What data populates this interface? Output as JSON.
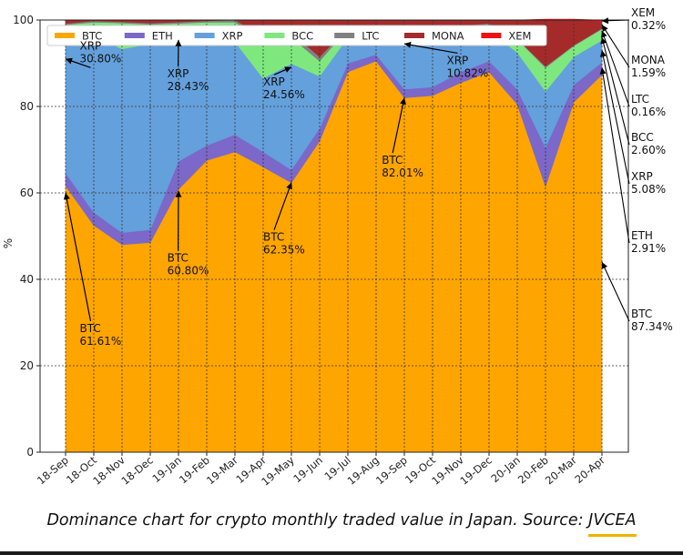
{
  "caption": {
    "text": "Dominance chart for crypto monthly traded value in Japan. Source: ",
    "link": "JVCEA"
  },
  "chart_data": {
    "type": "area",
    "stacked": true,
    "ylabel": "%",
    "xlabel": "",
    "ylim": [
      0,
      100
    ],
    "grid": true,
    "legend_position": "top",
    "categories": [
      "18-Sep",
      "18-Oct",
      "18-Nov",
      "18-Dec",
      "19-Jan",
      "19-Feb",
      "19-Mar",
      "19-Apr",
      "19-May",
      "19-Jun",
      "19-Jul",
      "19-Aug",
      "19-Sep",
      "19-Oct",
      "19-Nov",
      "19-Dec",
      "20-Jan",
      "20-Feb",
      "20-Mar",
      "20-Apr"
    ],
    "y_ticks": [
      0,
      20,
      40,
      60,
      80,
      100
    ],
    "series": [
      {
        "name": "BTC",
        "color": "#ffa500",
        "values": [
          61.61,
          52.5,
          48.0,
          48.5,
          60.8,
          67.5,
          69.5,
          66.0,
          62.35,
          72.0,
          88.0,
          90.5,
          82.01,
          82.5,
          85.5,
          88.0,
          80.5,
          61.5,
          81.0,
          87.34
        ]
      },
      {
        "name": "ETH",
        "color": "#7b68c8",
        "values": [
          3.0,
          3.0,
          2.8,
          3.0,
          6.5,
          3.5,
          4.0,
          3.5,
          3.0,
          3.0,
          2.0,
          1.5,
          2.0,
          2.0,
          2.5,
          2.5,
          3.5,
          9.0,
          4.0,
          2.91
        ]
      },
      {
        "name": "XRP",
        "color": "#64a0dc",
        "values": [
          30.8,
          41.0,
          42.5,
          43.0,
          28.43,
          25.5,
          21.5,
          17.0,
          24.56,
          12.0,
          6.0,
          4.5,
          10.82,
          12.5,
          9.0,
          7.0,
          8.5,
          13.0,
          6.5,
          5.08
        ]
      },
      {
        "name": "BCC",
        "color": "#7ee87e",
        "values": [
          3.5,
          3.0,
          6.0,
          4.5,
          3.5,
          3.0,
          4.5,
          9.0,
          6.0,
          3.5,
          2.0,
          1.5,
          1.5,
          1.5,
          1.5,
          1.5,
          3.0,
          5.5,
          2.5,
          2.6
        ]
      },
      {
        "name": "LTC",
        "color": "#808080",
        "values": [
          0.3,
          0.3,
          0.3,
          0.3,
          0.3,
          0.3,
          0.5,
          0.8,
          1.2,
          1.0,
          0.3,
          0.3,
          0.3,
          0.2,
          0.2,
          0.2,
          0.2,
          0.3,
          0.2,
          0.16
        ]
      },
      {
        "name": "MONA",
        "color": "#a52a2a",
        "values": [
          0.7,
          0.2,
          0.3,
          0.6,
          0.37,
          0.2,
          0.0,
          3.7,
          2.89,
          8.5,
          1.7,
          1.7,
          3.37,
          1.3,
          1.3,
          0.8,
          4.3,
          10.7,
          5.8,
          1.59
        ]
      },
      {
        "name": "XEM",
        "color": "#ee1111",
        "values": [
          0.09,
          0,
          0.1,
          0.1,
          0.1,
          0,
          0,
          0,
          0,
          0,
          0,
          0,
          0,
          0,
          0,
          0,
          0,
          0.2,
          0.2,
          0.32
        ]
      }
    ],
    "annotations": [
      {
        "name": "xrp-30-80",
        "text": [
          "XRP",
          "30.80%"
        ],
        "x": 0.5,
        "y": 93.2,
        "point": "18-Sep",
        "pointY": 91.0
      },
      {
        "name": "xrp-28-43",
        "text": [
          "XRP",
          "28.43%"
        ],
        "x": 3.6,
        "y": 86.7,
        "point": "19-Jan",
        "pointY": 95.4
      },
      {
        "name": "xrp-24-56",
        "text": [
          "XRP",
          "24.56%"
        ],
        "x": 7.0,
        "y": 84.8,
        "point": "19-May",
        "pointY": 89.1
      },
      {
        "name": "xrp-10-82",
        "text": [
          "XRP",
          "10.82%"
        ],
        "x": 13.5,
        "y": 89.8,
        "point": "19-Sep",
        "pointY": 94.5
      },
      {
        "name": "btc-82-01",
        "text": [
          "BTC",
          "82.01%"
        ],
        "x": 11.2,
        "y": 66.7,
        "point": "19-Sep",
        "pointY": 82.0
      },
      {
        "name": "btc-62-35",
        "text": [
          "BTC",
          "62.35%"
        ],
        "x": 7.0,
        "y": 48.9,
        "point": "19-May",
        "pointY": 62.4
      },
      {
        "name": "btc-60-80",
        "text": [
          "BTC",
          "60.80%"
        ],
        "x": 3.6,
        "y": 44.1,
        "point": "19-Jan",
        "pointY": 60.5
      },
      {
        "name": "btc-61-61",
        "text": [
          "BTC",
          "61.61%"
        ],
        "x": 0.5,
        "y": 27.8,
        "point": "18-Sep",
        "pointY": 60.0
      }
    ],
    "right_labels": [
      {
        "name": "xem",
        "text": [
          "XEM",
          "0.32%"
        ],
        "pointY": 99.8
      },
      {
        "name": "mona",
        "text": [
          "MONA",
          "1.59%"
        ],
        "pointY": 98.9
      },
      {
        "name": "ltc",
        "text": [
          "LTC",
          "0.16%"
        ],
        "pointY": 97.5
      },
      {
        "name": "bcc",
        "text": [
          "BCC",
          "2.60%"
        ],
        "pointY": 96.0
      },
      {
        "name": "xrp",
        "text": [
          "XRP",
          "5.08%"
        ],
        "pointY": 93.0
      },
      {
        "name": "eth",
        "text": [
          "ETH",
          "2.91%"
        ],
        "pointY": 89.0
      },
      {
        "name": "btc",
        "text": [
          "BTC",
          "87.34%"
        ],
        "pointY": 44.0
      }
    ]
  }
}
